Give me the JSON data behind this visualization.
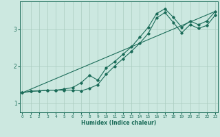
{
  "title": "",
  "xlabel": "Humidex (Indice chaleur)",
  "ylabel": "",
  "bg_color": "#cce8e0",
  "line_color": "#1a6b58",
  "grid_color": "#aaccbf",
  "x_ticks": [
    0,
    1,
    2,
    3,
    4,
    5,
    6,
    7,
    8,
    9,
    10,
    11,
    12,
    13,
    14,
    15,
    16,
    17,
    18,
    19,
    20,
    21,
    22,
    23
  ],
  "y_ticks": [
    1,
    2,
    3
  ],
  "xlim": [
    -0.3,
    23.3
  ],
  "ylim": [
    0.75,
    3.75
  ],
  "line1_x": [
    0,
    1,
    2,
    3,
    4,
    5,
    6,
    7,
    8,
    9,
    10,
    11,
    12,
    13,
    14,
    15,
    16,
    17,
    18,
    19,
    20,
    21,
    22,
    23
  ],
  "line1_y": [
    1.28,
    1.32,
    1.33,
    1.35,
    1.35,
    1.35,
    1.35,
    1.33,
    1.4,
    1.5,
    1.78,
    2.0,
    2.2,
    2.4,
    2.62,
    2.88,
    3.3,
    3.45,
    3.18,
    2.9,
    3.12,
    3.02,
    3.1,
    3.38
  ],
  "line2_x": [
    0,
    1,
    2,
    3,
    4,
    5,
    6,
    7,
    8,
    9,
    10,
    11,
    12,
    13,
    14,
    15,
    16,
    17,
    18,
    19,
    20,
    21,
    22,
    23
  ],
  "line2_y": [
    1.28,
    1.32,
    1.33,
    1.35,
    1.35,
    1.38,
    1.42,
    1.55,
    1.75,
    1.62,
    1.95,
    2.12,
    2.32,
    2.52,
    2.78,
    3.05,
    3.42,
    3.55,
    3.32,
    3.05,
    3.22,
    3.12,
    3.22,
    3.48
  ],
  "line3_x": [
    0,
    23
  ],
  "line3_y": [
    1.28,
    3.48
  ]
}
